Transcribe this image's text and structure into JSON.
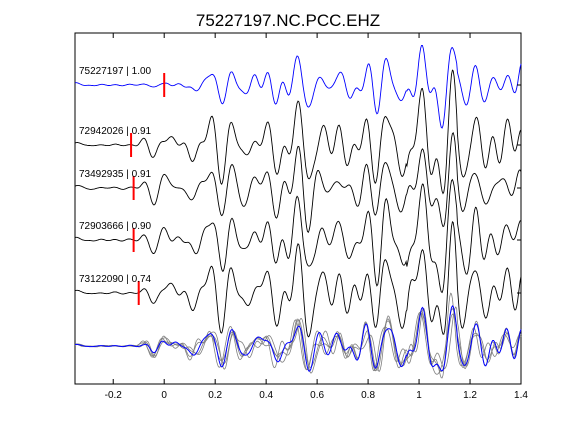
{
  "chart_data": {
    "type": "line",
    "title": "75227197.NC.PCC.EHZ",
    "xlabel": "",
    "ylabel": "",
    "xlim": [
      -0.35,
      1.4
    ],
    "x_ticks": [
      -0.2,
      0,
      0.2,
      0.4,
      0.6,
      0.8,
      1,
      1.2,
      1.4
    ],
    "x_tick_labels": [
      "-0.2",
      "0",
      "0.2",
      "0.4",
      "0.6",
      "0.8",
      "1",
      "1.2",
      "1.4"
    ],
    "grid": false,
    "colors": {
      "master": "#0000ff",
      "trace": "#000000",
      "overlay": "#808080",
      "pick": "#ff0000"
    },
    "traces": [
      {
        "label": "75227197 | 1.00",
        "event": "75227197",
        "cc": 1.0,
        "pick_time": 0.0,
        "color": "master"
      },
      {
        "label": "72942026 | 0.91",
        "event": "72942026",
        "cc": 0.91,
        "pick_time": -0.13,
        "color": "trace"
      },
      {
        "label": "73492935 | 0.91",
        "event": "73492935",
        "cc": 0.91,
        "pick_time": -0.12,
        "color": "trace"
      },
      {
        "label": "72903666 | 0.90",
        "event": "72903666",
        "cc": 0.9,
        "pick_time": -0.12,
        "color": "trace"
      },
      {
        "label": "73122090 | 0.74",
        "event": "73122090",
        "cc": 0.74,
        "pick_time": -0.1,
        "color": "trace"
      }
    ],
    "stack": {
      "label": "",
      "overlay_count": 4
    }
  }
}
